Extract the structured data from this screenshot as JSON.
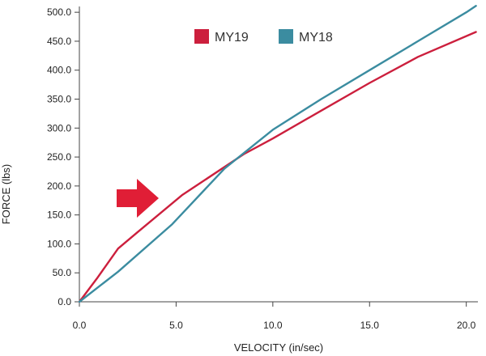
{
  "chart_data": {
    "type": "line",
    "title": "",
    "xlabel": "VELOCITY (in/sec)",
    "ylabel": "FORCE (lbs)",
    "xlim": [
      0,
      20.6
    ],
    "ylim": [
      0,
      510
    ],
    "x_ticks": [
      "0.0",
      "5.0",
      "10.0",
      "15.0",
      "20.0"
    ],
    "x_tick_values": [
      0,
      5,
      10,
      15,
      20
    ],
    "y_ticks": [
      "0.0",
      "50.0",
      "100.0",
      "150.0",
      "200.0",
      "250.0",
      "300.0",
      "350.0",
      "400.0",
      "450.0",
      "500.0"
    ],
    "y_tick_values": [
      0,
      50,
      100,
      150,
      200,
      250,
      300,
      350,
      400,
      450,
      500
    ],
    "grid": false,
    "legend_position": "top-center",
    "series": [
      {
        "name": "MY19",
        "color": "#cc1f3d",
        "points": [
          [
            0,
            0
          ],
          [
            0.9,
            40
          ],
          [
            2.0,
            92
          ],
          [
            3.0,
            120
          ],
          [
            5.3,
            184
          ],
          [
            8.5,
            255
          ],
          [
            10.0,
            282
          ],
          [
            12.5,
            330
          ],
          [
            15.0,
            378
          ],
          [
            17.5,
            423
          ],
          [
            20.5,
            466
          ]
        ]
      },
      {
        "name": "MY18",
        "color": "#3b8ca0",
        "points": [
          [
            0,
            0
          ],
          [
            2.0,
            52
          ],
          [
            4.8,
            134
          ],
          [
            7.5,
            230
          ],
          [
            10.0,
            297
          ],
          [
            12.5,
            350
          ],
          [
            15.0,
            400
          ],
          [
            17.5,
            450
          ],
          [
            20.0,
            500
          ],
          [
            20.5,
            511
          ]
        ]
      }
    ],
    "annotation": {
      "type": "arrow",
      "color": "#e01e36",
      "direction": "right"
    }
  }
}
